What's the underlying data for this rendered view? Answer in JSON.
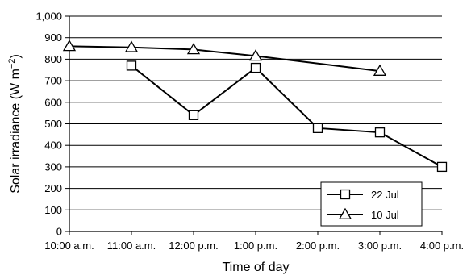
{
  "chart_data": {
    "type": "line",
    "xlabel": "Time of day",
    "ylabel": "Solar irradiance (W m",
    "ylabel_sup": "−2",
    "ylabel_close": ")",
    "categories": [
      "10:00 a.m.",
      "11:00 a.m.",
      "12:00 p.m.",
      "1:00 p.m.",
      "2:00 p.m.",
      "3:00 p.m.",
      "4:00 p.m."
    ],
    "yticks": [
      "0",
      "100",
      "200",
      "300",
      "400",
      "500",
      "600",
      "700",
      "800",
      "900",
      "1,000"
    ],
    "ylim": [
      0,
      1000
    ],
    "grid": "horizontal",
    "legend_position": "bottom-right",
    "series": [
      {
        "name": "22 Jul",
        "marker": "square",
        "values": [
          null,
          770,
          540,
          760,
          480,
          460,
          300
        ]
      },
      {
        "name": "10 Jul",
        "marker": "triangle",
        "values": [
          860,
          855,
          845,
          815,
          null,
          745,
          null
        ]
      }
    ],
    "colors": {
      "line": "#000000",
      "marker_fill": "#ffffff",
      "grid": "#000000"
    }
  }
}
